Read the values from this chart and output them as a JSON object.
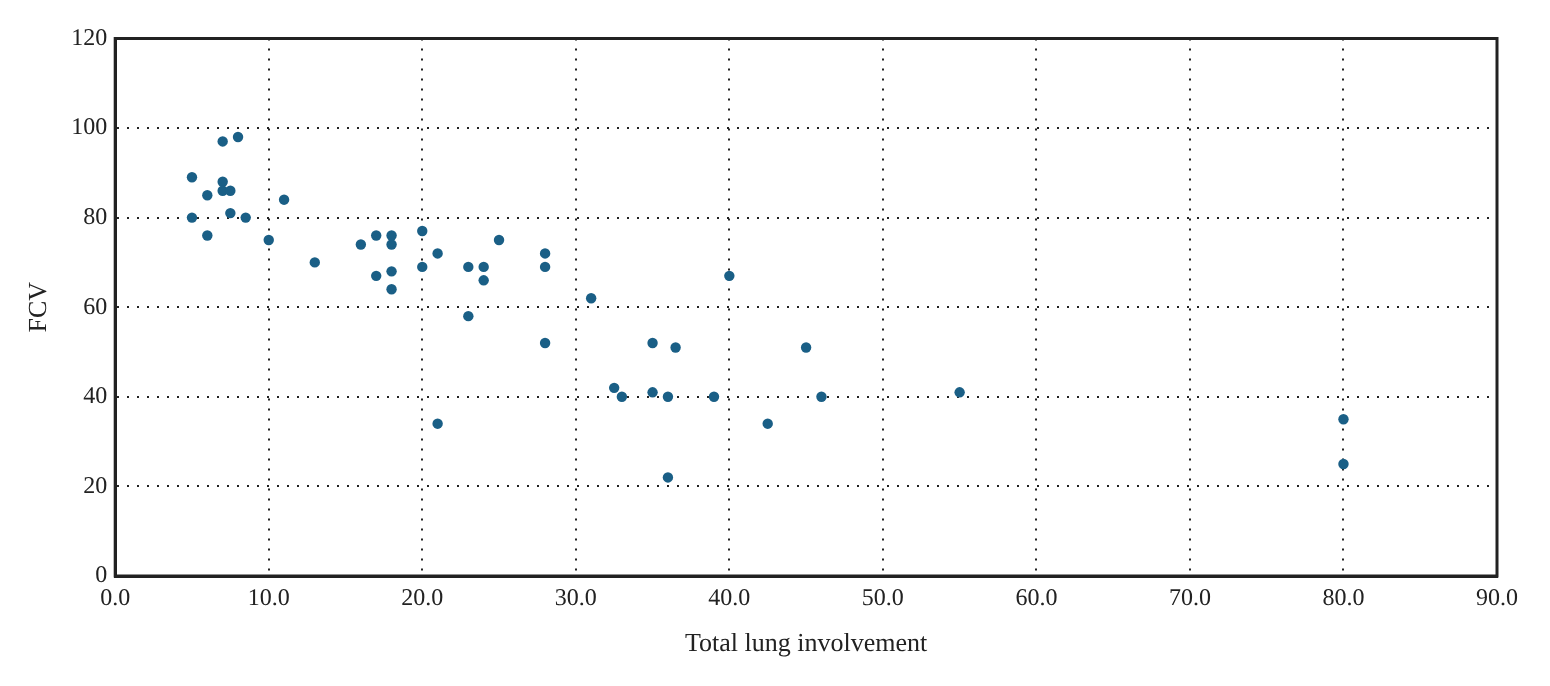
{
  "chart_data": {
    "type": "scatter",
    "xlabel": "Total lung involvement",
    "ylabel": "FCV",
    "x": [
      5,
      5,
      6,
      6,
      7,
      7,
      7,
      7.5,
      7.5,
      8,
      8.5,
      10,
      11,
      13,
      16,
      17,
      17,
      18,
      18,
      18,
      18,
      20,
      20,
      21,
      21,
      23,
      23,
      24,
      24,
      25,
      28,
      28,
      28,
      31,
      32.5,
      33,
      35,
      35,
      36,
      36,
      36.5,
      39,
      40,
      42.5,
      45,
      46,
      55,
      80,
      80
    ],
    "values": [
      89,
      80,
      85,
      76,
      97,
      88,
      86,
      86,
      81,
      98,
      80,
      75,
      84,
      70,
      74,
      76,
      67,
      76,
      74,
      68,
      64,
      77,
      69,
      72,
      34,
      69,
      58,
      69,
      66,
      75,
      72,
      69,
      52,
      62,
      42,
      40,
      52,
      41,
      40,
      22,
      51,
      40,
      67,
      34,
      51,
      40,
      41,
      35,
      25
    ],
    "color": "#1a5f86",
    "marker": "circle",
    "xlim": [
      0,
      90
    ],
    "xticks": [
      {
        "value": 0,
        "label": "0.0"
      },
      {
        "value": 10,
        "label": "10.0"
      },
      {
        "value": 20,
        "label": "20.0"
      },
      {
        "value": 30,
        "label": "30.0"
      },
      {
        "value": 40,
        "label": "40.0"
      },
      {
        "value": 50,
        "label": "50.0"
      },
      {
        "value": 60,
        "label": "60.0"
      },
      {
        "value": 70,
        "label": "70.0"
      },
      {
        "value": 80,
        "label": "80.0"
      },
      {
        "value": 90,
        "label": "90.0"
      }
    ],
    "ylim": [
      0,
      120
    ],
    "yticks": [
      0,
      20,
      40,
      60,
      80,
      100,
      120
    ],
    "grid": true,
    "legend": false
  }
}
